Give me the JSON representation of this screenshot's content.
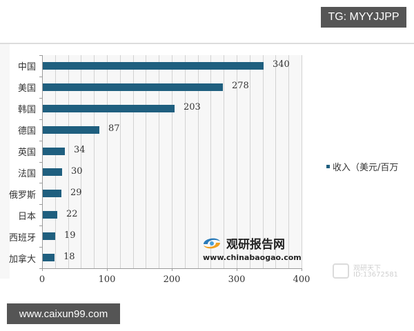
{
  "header": {
    "tg_badge": "TG: MYYJJPP"
  },
  "footer": {
    "site_badge": "www.caixun99.com"
  },
  "watermark": {
    "logo_name": "观研报告网",
    "logo_url": "www.chinabaogao.com",
    "overlay_line1": "观研天下",
    "overlay_line2": "ID:13672581"
  },
  "colors": {
    "bar": "#1f5f7f",
    "plot_bg": "#f7f7f7",
    "grid": "#d2d2d2",
    "badge_bg": "#555555"
  },
  "chart_data": {
    "type": "bar",
    "orientation": "horizontal",
    "title": "",
    "xlabel": "",
    "ylabel": "",
    "categories": [
      "中国",
      "美国",
      "韩国",
      "德国",
      "英国",
      "法国",
      "俄罗斯",
      "日本",
      "西班牙",
      "加拿大"
    ],
    "series": [
      {
        "name": "收入（美元/百万",
        "values": [
          340,
          278,
          203,
          87,
          34,
          30,
          29,
          22,
          19,
          18
        ]
      }
    ],
    "value_labels": [
      "340",
      "278",
      "203",
      "87",
      "34",
      "30",
      "29",
      "22",
      "19",
      "18"
    ],
    "xlim": [
      0,
      400
    ],
    "xticks": [
      "0",
      "100",
      "200",
      "300",
      "400"
    ],
    "grid": {
      "vertical": true,
      "step": 20
    },
    "legend": {
      "position": "right",
      "entries": [
        "收入（美元/百万"
      ]
    }
  }
}
